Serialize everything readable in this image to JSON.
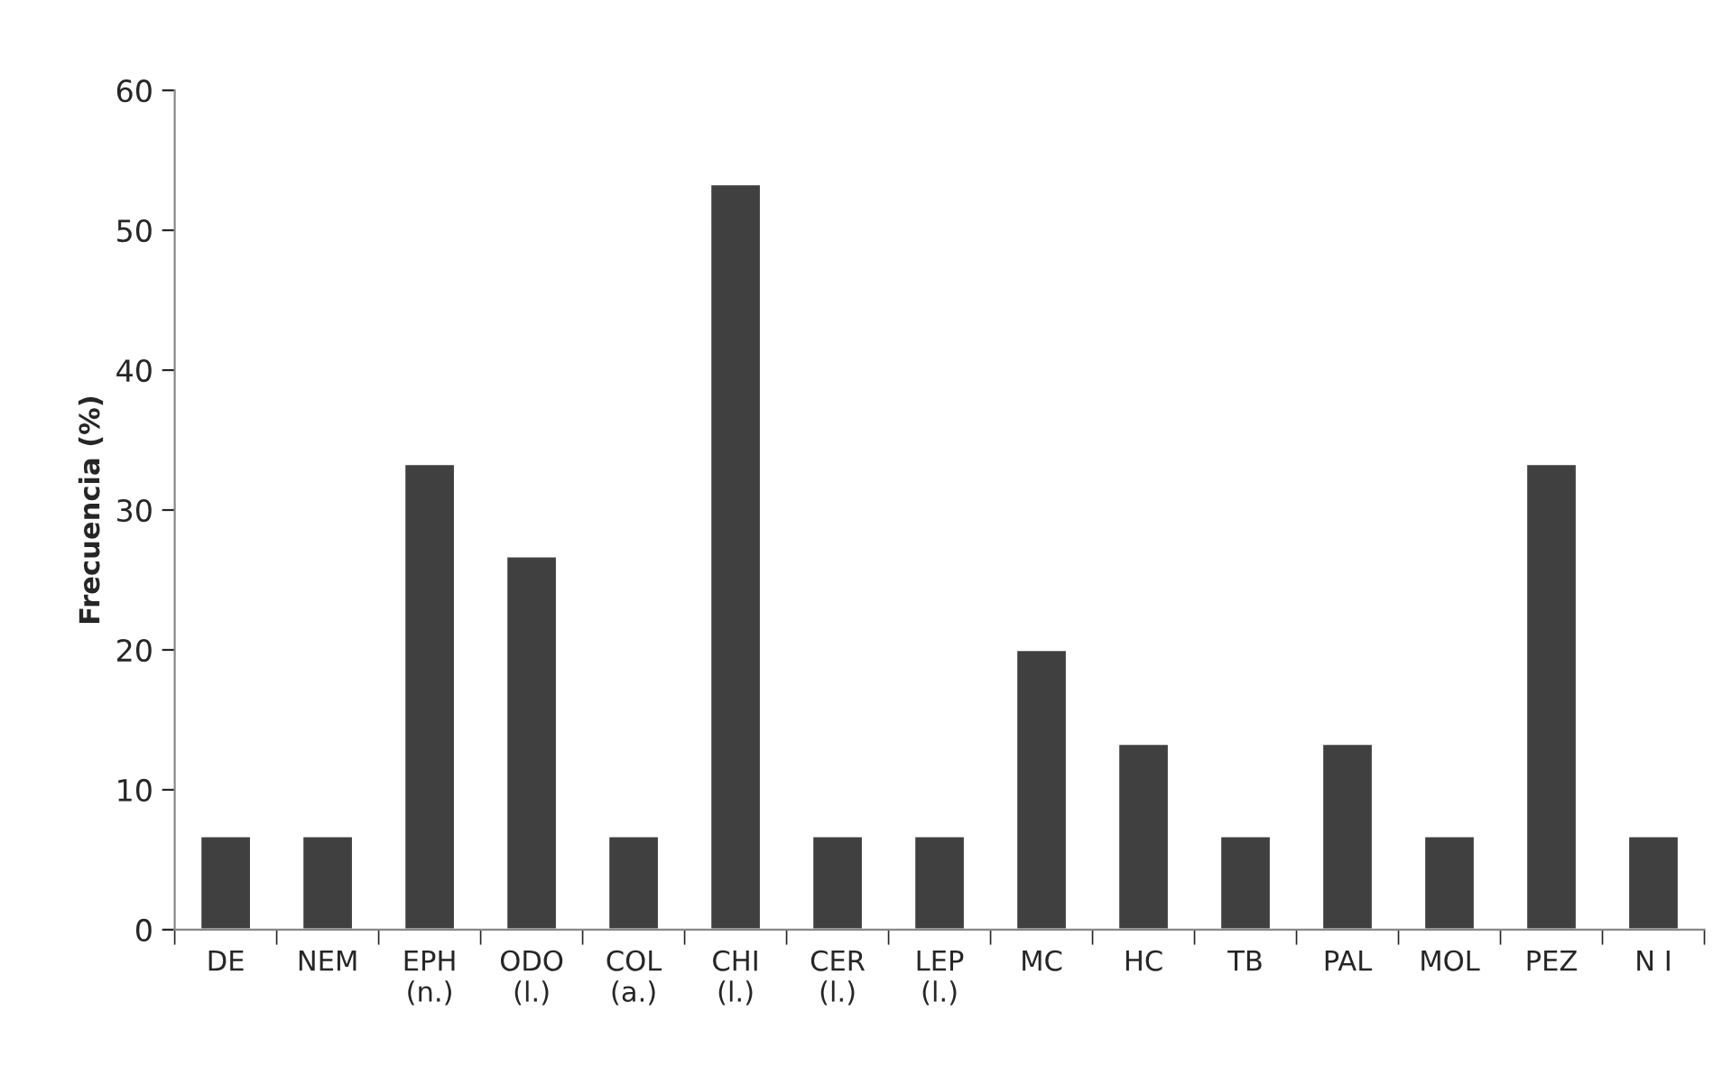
{
  "chart_data": {
    "type": "bar",
    "ylabel": "Frecuencia (%)",
    "categories": [
      "DE",
      "NEM",
      "EPH\n(n.)",
      "ODO\n(l.)",
      "COL\n(a.)",
      "CHI\n(l.)",
      "CER\n(l.)",
      "LEP\n(l.)",
      "MC",
      "HC",
      "TB",
      "PAL",
      "MOL",
      "PEZ",
      "N I"
    ],
    "values": [
      6.7,
      6.7,
      33.3,
      26.7,
      6.7,
      53.3,
      6.7,
      6.7,
      20,
      13.3,
      6.7,
      13.3,
      6.7,
      33.3,
      6.7
    ],
    "color": "#404040",
    "ylim": [
      0,
      60
    ],
    "yticks": [
      0,
      10,
      20,
      30,
      40,
      50,
      60
    ],
    "grid": false,
    "legend": false
  }
}
